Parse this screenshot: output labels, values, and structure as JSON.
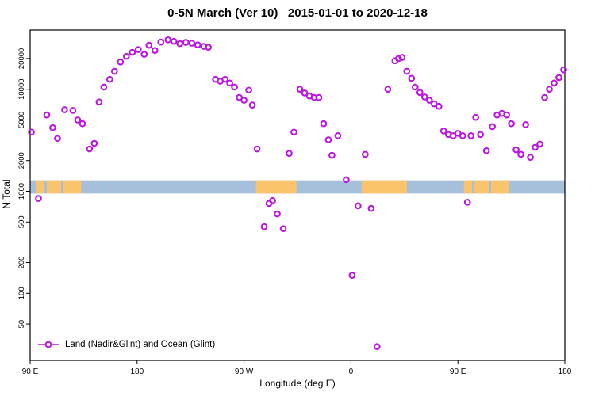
{
  "title": "0-5N March (Ver 10)   2015-01-01 to 2020-12-18",
  "chart_data": {
    "type": "scatter",
    "title": "0-5N March (Ver 10)   2015-01-01 to 2020-12-18",
    "xlabel": "Longitude (deg E)",
    "ylabel": "N Total",
    "y_scale": "log",
    "y_range": [
      22,
      38000
    ],
    "x_range": [
      90,
      540
    ],
    "x_ticks": [
      {
        "pos": 90,
        "label": "90 E"
      },
      {
        "pos": 180,
        "label": "180"
      },
      {
        "pos": 270,
        "label": "90 W"
      },
      {
        "pos": 360,
        "label": "0"
      },
      {
        "pos": 450,
        "label": "90 E"
      },
      {
        "pos": 540,
        "label": "180"
      }
    ],
    "y_ticks": [
      50,
      100,
      200,
      500,
      1000,
      2000,
      5000,
      10000,
      20000
    ],
    "legend": {
      "label": "Land (Nadir&Glint) and Ocean (Glint)"
    },
    "point_color": "#BC16E0",
    "band": {
      "description": "equatorial land/ocean strip",
      "y_min": 950,
      "y_max": 1280,
      "ocean_color": "#A6BFDB",
      "land_color": "#F9C46B",
      "land_segments": [
        [
          95,
          102
        ],
        [
          104,
          116
        ],
        [
          118,
          133
        ],
        [
          280,
          314
        ],
        [
          369,
          407
        ],
        [
          455,
          462
        ],
        [
          464,
          476
        ],
        [
          478,
          493
        ]
      ]
    },
    "points": [
      [
        91,
        3800
      ],
      [
        97,
        850
      ],
      [
        104,
        5600
      ],
      [
        109,
        4200
      ],
      [
        113,
        3300
      ],
      [
        119,
        6300
      ],
      [
        126,
        6200
      ],
      [
        130,
        5000
      ],
      [
        134,
        4600
      ],
      [
        140,
        2600
      ],
      [
        144,
        2950
      ],
      [
        148,
        7500
      ],
      [
        152,
        10500
      ],
      [
        157,
        12500
      ],
      [
        161,
        15000
      ],
      [
        166,
        18500
      ],
      [
        171,
        21000
      ],
      [
        176,
        23000
      ],
      [
        181,
        24500
      ],
      [
        186,
        22000
      ],
      [
        190,
        27000
      ],
      [
        195,
        24000
      ],
      [
        200,
        29000
      ],
      [
        206,
        30500
      ],
      [
        211,
        29500
      ],
      [
        216,
        28000
      ],
      [
        221,
        28800
      ],
      [
        226,
        28300
      ],
      [
        231,
        27200
      ],
      [
        236,
        26300
      ],
      [
        240,
        25800
      ],
      [
        246,
        12500
      ],
      [
        250,
        12000
      ],
      [
        254,
        12500
      ],
      [
        258,
        11500
      ],
      [
        262,
        10500
      ],
      [
        266,
        8300
      ],
      [
        270,
        7800
      ],
      [
        274,
        9800
      ],
      [
        277,
        7000
      ],
      [
        281,
        2600
      ],
      [
        287,
        450
      ],
      [
        291,
        760
      ],
      [
        294,
        810
      ],
      [
        298,
        600
      ],
      [
        303,
        430
      ],
      [
        308,
        2350
      ],
      [
        312,
        3800
      ],
      [
        317,
        10000
      ],
      [
        321,
        9200
      ],
      [
        325,
        8600
      ],
      [
        329,
        8300
      ],
      [
        333,
        8300
      ],
      [
        337,
        4600
      ],
      [
        341,
        3200
      ],
      [
        344,
        2250
      ],
      [
        349,
        3500
      ],
      [
        356,
        1300
      ],
      [
        361,
        150
      ],
      [
        366,
        720
      ],
      [
        372,
        2300
      ],
      [
        377,
        680
      ],
      [
        382,
        30
      ],
      [
        391,
        10000
      ],
      [
        397,
        19000
      ],
      [
        400,
        20000
      ],
      [
        403,
        20500
      ],
      [
        407,
        15000
      ],
      [
        411,
        12800
      ],
      [
        414,
        10500
      ],
      [
        418,
        9300
      ],
      [
        422,
        8400
      ],
      [
        426,
        7800
      ],
      [
        430,
        7200
      ],
      [
        434,
        6800
      ],
      [
        438,
        3900
      ],
      [
        442,
        3600
      ],
      [
        446,
        3500
      ],
      [
        450,
        3700
      ],
      [
        454,
        3500
      ],
      [
        458,
        780
      ],
      [
        461,
        3500
      ],
      [
        465,
        5300
      ],
      [
        469,
        3600
      ],
      [
        474,
        2500
      ],
      [
        479,
        4300
      ],
      [
        483,
        5600
      ],
      [
        487,
        5800
      ],
      [
        491,
        5600
      ],
      [
        495,
        4600
      ],
      [
        499,
        2550
      ],
      [
        503,
        2300
      ],
      [
        507,
        4500
      ],
      [
        511,
        2150
      ],
      [
        515,
        2700
      ],
      [
        519,
        2900
      ],
      [
        523,
        8300
      ],
      [
        527,
        10000
      ],
      [
        531,
        11500
      ],
      [
        535,
        13000
      ],
      [
        539,
        15500
      ]
    ]
  }
}
